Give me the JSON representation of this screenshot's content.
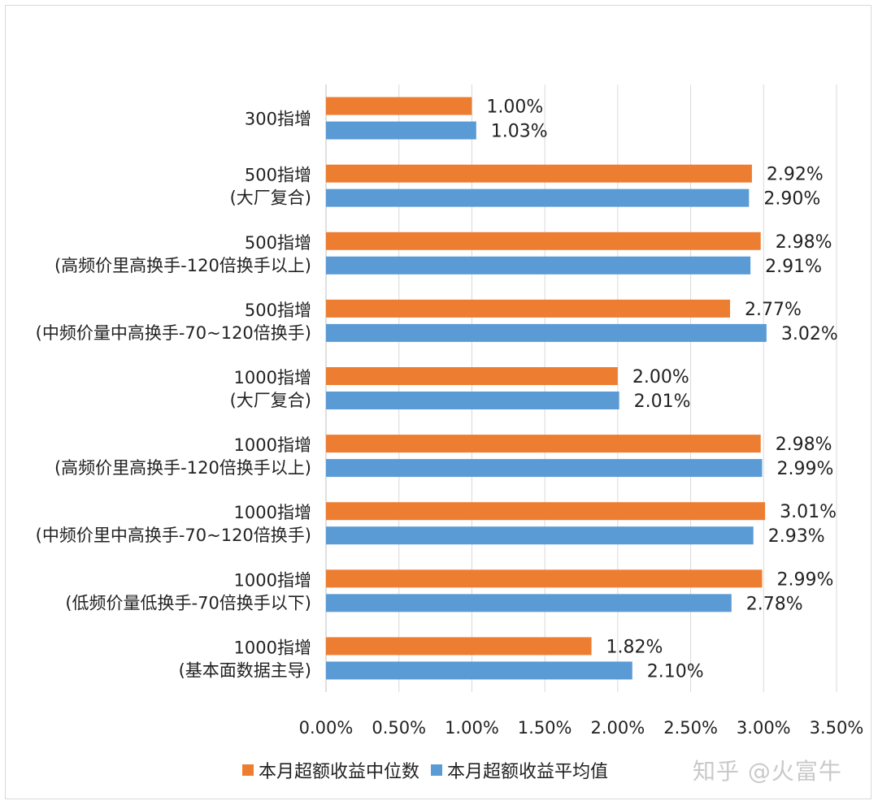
{
  "chart_data": {
    "type": "bar",
    "orientation": "horizontal",
    "categories": [
      [
        "300指增"
      ],
      [
        "500指增",
        "(大厂复合)"
      ],
      [
        "500指增",
        "(高频价里高换手-120倍换手以上)"
      ],
      [
        "500指增",
        "(中频价量中高换手-70~120倍换手)"
      ],
      [
        "1000指增",
        "(大厂复合)"
      ],
      [
        "1000指增",
        "(高频价里高换手-120倍换手以上)"
      ],
      [
        "1000指增",
        "(中频价里中高换手-70~120倍换手)"
      ],
      [
        "1000指增",
        "(低频价量低换手-70倍换手以下)"
      ],
      [
        "1000指增",
        "(基本面数据主导)"
      ]
    ],
    "series": [
      {
        "name": "本月超额收益中位数",
        "color": "#ED7D31",
        "values": [
          1.0,
          2.92,
          2.98,
          2.77,
          2.0,
          2.98,
          3.01,
          2.99,
          1.82
        ],
        "labels": [
          "1.00%",
          "2.92%",
          "2.98%",
          "2.77%",
          "2.00%",
          "2.98%",
          "3.01%",
          "2.99%",
          "1.82%"
        ]
      },
      {
        "name": "本月超额收益平均值",
        "color": "#5B9BD5",
        "values": [
          1.03,
          2.9,
          2.91,
          3.02,
          2.01,
          2.99,
          2.93,
          2.78,
          2.1
        ],
        "labels": [
          "1.03%",
          "2.90%",
          "2.91%",
          "3.02%",
          "2.01%",
          "2.99%",
          "2.93%",
          "2.78%",
          "2.10%"
        ]
      }
    ],
    "xlim": [
      0,
      3.5
    ],
    "xticks": [
      "0.00%",
      "0.50%",
      "1.00%",
      "1.50%",
      "2.00%",
      "2.50%",
      "3.00%",
      "3.50%"
    ],
    "grid": true,
    "legend_position": "bottom-left"
  },
  "legend": {
    "items": [
      {
        "label": "本月超额收益中位数",
        "color": "#ED7D31"
      },
      {
        "label": "本月超额收益平均值",
        "color": "#5B9BD5"
      }
    ]
  },
  "watermark": "知乎 @火富牛"
}
